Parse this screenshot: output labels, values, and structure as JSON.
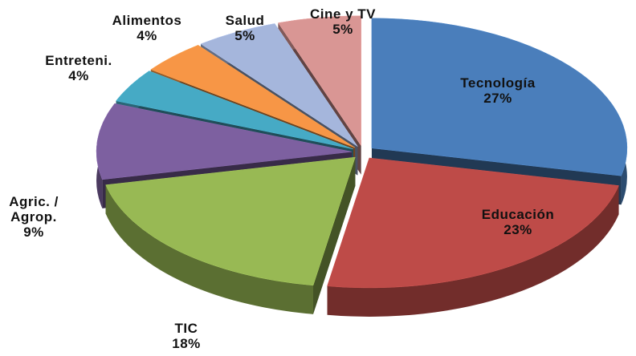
{
  "chart_data": {
    "type": "pie",
    "categories": [
      "Tecnología",
      "Educación",
      "TIC",
      "Agric. /\nAgrop.",
      "Entreteni.",
      "Alimentos",
      "Salud",
      "Cine y TV"
    ],
    "values": [
      27,
      23,
      18,
      9,
      4,
      4,
      5,
      5
    ],
    "value_labels": [
      "27%",
      "23%",
      "18%",
      "9%",
      "4%",
      "4%",
      "5%",
      "5%"
    ],
    "colors": [
      "#4a7ebb",
      "#be4b48",
      "#98b954",
      "#7d60a0",
      "#46aac5",
      "#f79646",
      "#a5b6dc",
      "#d99694"
    ]
  }
}
